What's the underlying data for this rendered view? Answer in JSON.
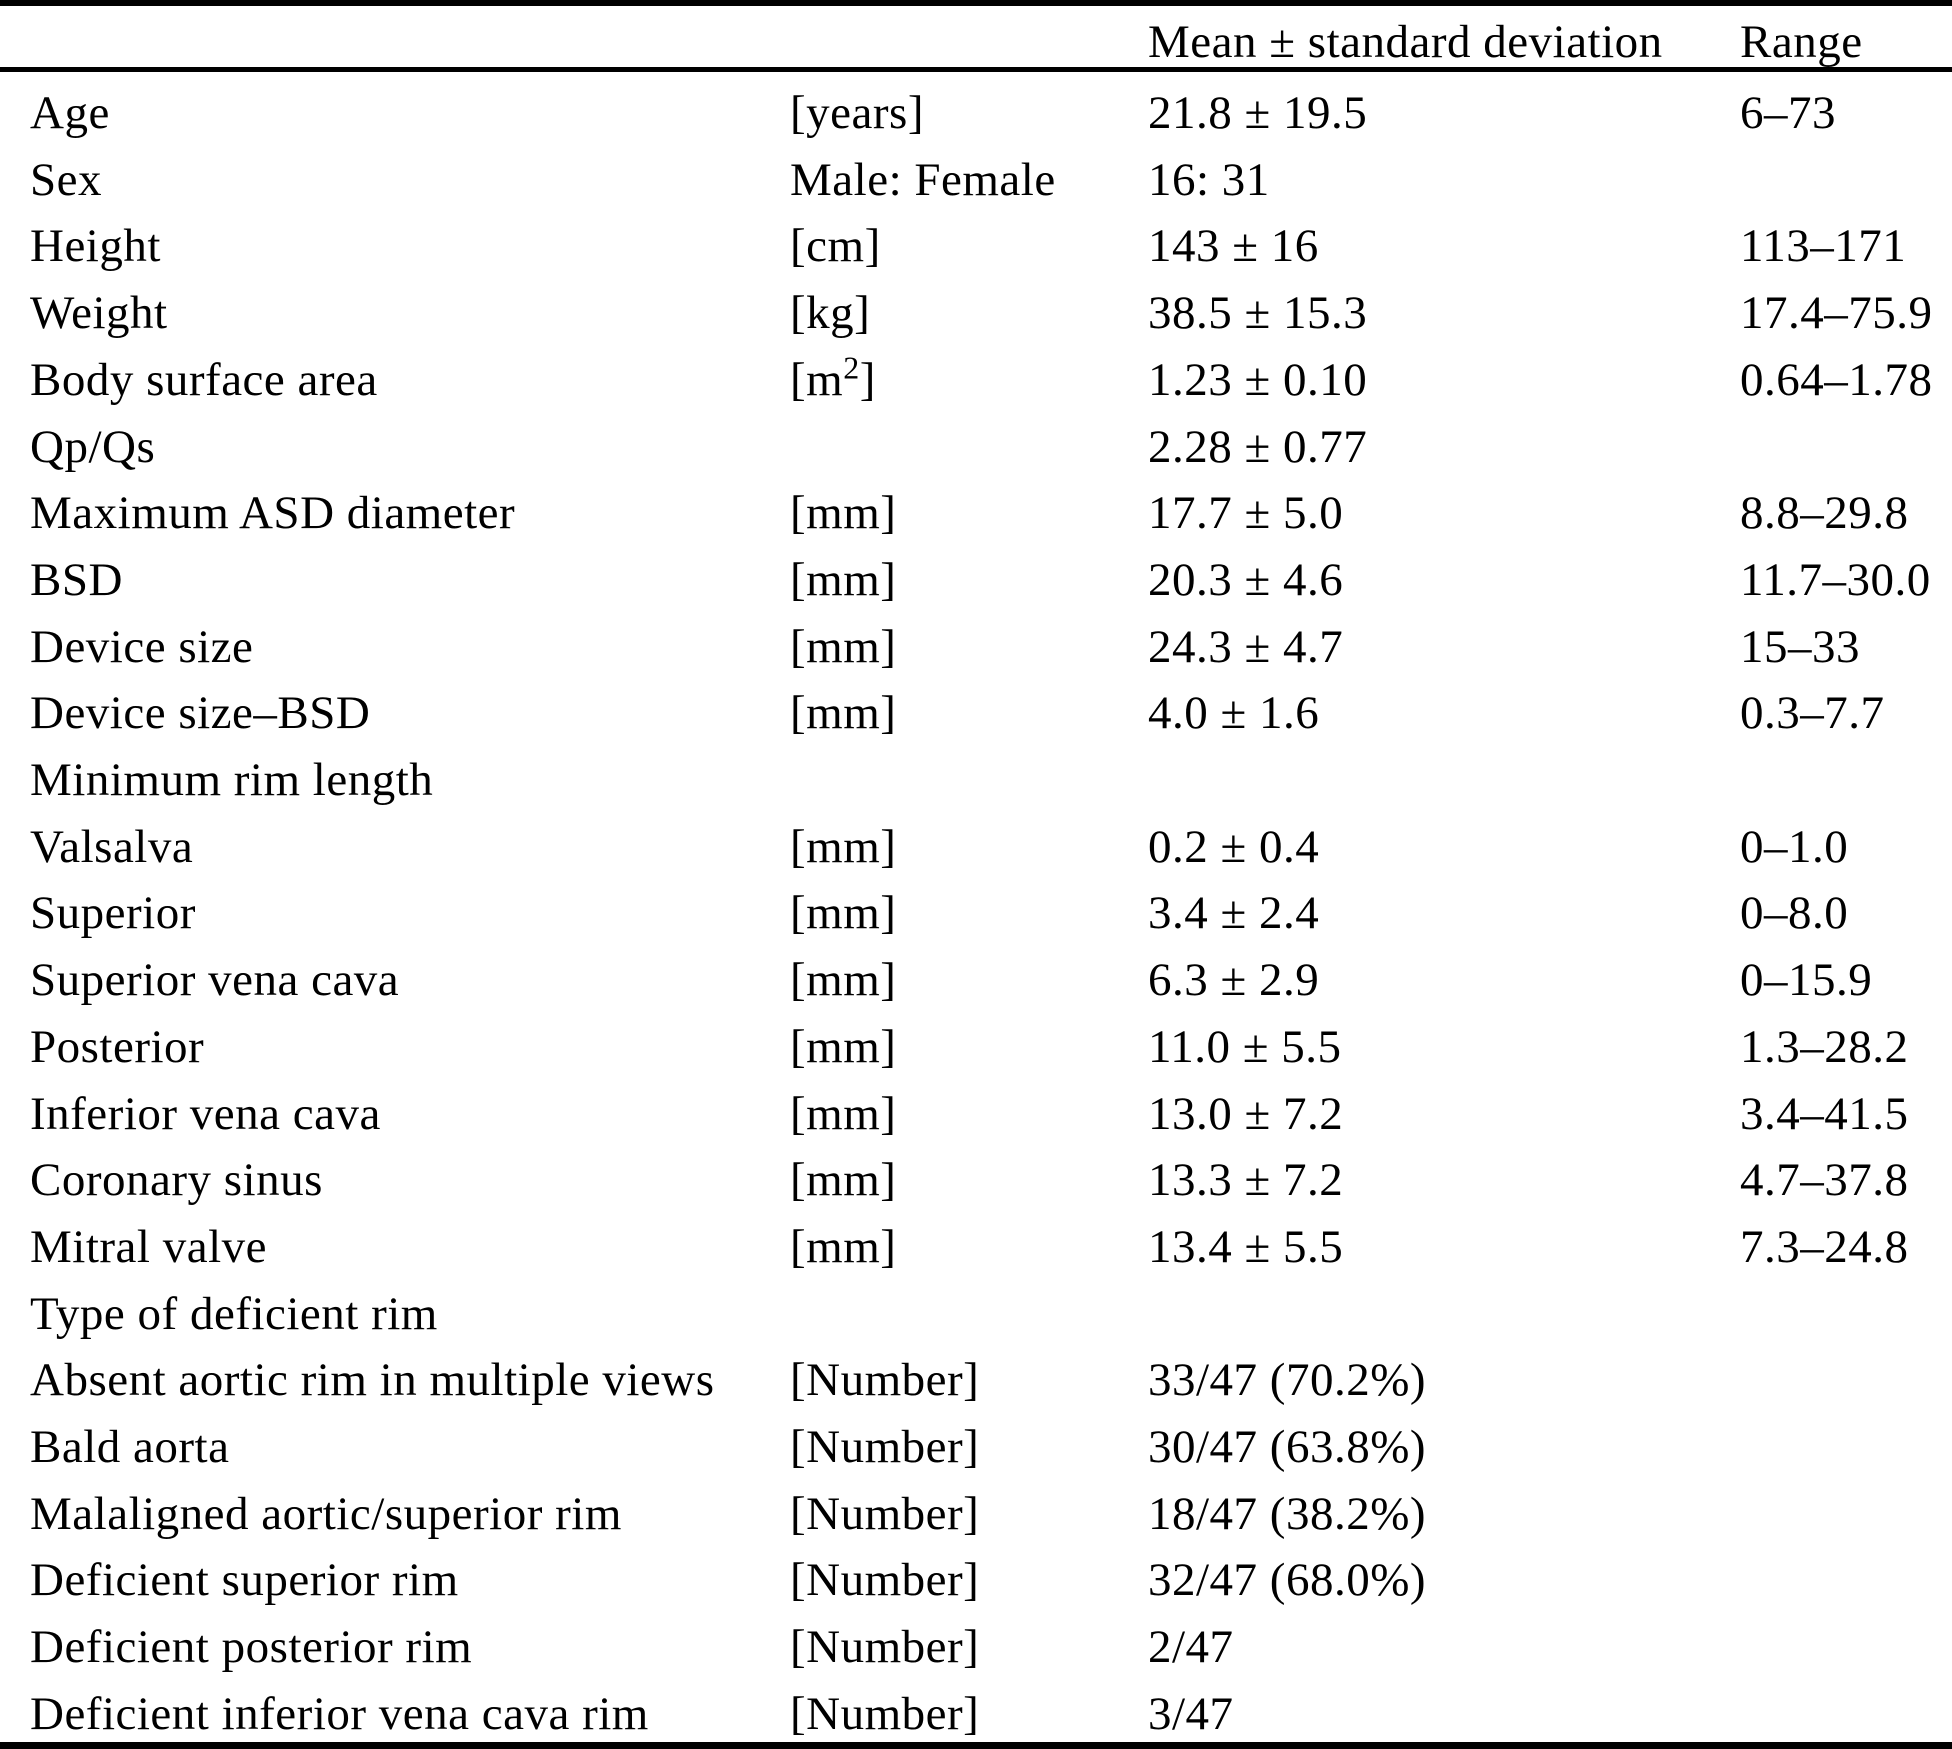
{
  "table": {
    "header": {
      "mean_label": "Mean ± standard deviation",
      "range_label": "Range"
    },
    "rows": [
      {
        "label": "Age",
        "unit": "[years]",
        "mean": "21.8 ± 19.5",
        "range": "6–73"
      },
      {
        "label": "Sex",
        "unit": "Male: Female",
        "mean": "16: 31",
        "range": ""
      },
      {
        "label": "Height",
        "unit": "[cm]",
        "mean": "143 ± 16",
        "range": "113–171"
      },
      {
        "label": "Weight",
        "unit": "[kg]",
        "mean": "38.5 ± 15.3",
        "range": "17.4–75.9"
      },
      {
        "label": "Body surface area",
        "unit": "[m²]",
        "mean": "1.23 ± 0.10",
        "range": "0.64–1.78"
      },
      {
        "label": "Qp/Qs",
        "unit": "",
        "mean": "2.28 ± 0.77",
        "range": ""
      },
      {
        "label": "Maximum ASD diameter",
        "unit": "[mm]",
        "mean": "17.7 ± 5.0",
        "range": "8.8–29.8"
      },
      {
        "label": "BSD",
        "unit": "[mm]",
        "mean": "20.3 ± 4.6",
        "range": "11.7–30.0"
      },
      {
        "label": "Device size",
        "unit": "[mm]",
        "mean": "24.3 ± 4.7",
        "range": "15–33"
      },
      {
        "label": "Device size–BSD",
        "unit": "[mm]",
        "mean": "4.0 ± 1.6",
        "range": "0.3–7.7"
      },
      {
        "label": "Minimum rim length",
        "unit": "",
        "mean": "",
        "range": ""
      },
      {
        "label": "Valsalva",
        "unit": "[mm]",
        "mean": "0.2 ± 0.4",
        "range": "0–1.0"
      },
      {
        "label": "Superior",
        "unit": "[mm]",
        "mean": "3.4 ± 2.4",
        "range": "0–8.0"
      },
      {
        "label": "Superior vena cava",
        "unit": "[mm]",
        "mean": "6.3 ± 2.9",
        "range": "0–15.9"
      },
      {
        "label": "Posterior",
        "unit": "[mm]",
        "mean": "11.0 ± 5.5",
        "range": "1.3–28.2"
      },
      {
        "label": "Inferior vena cava",
        "unit": "[mm]",
        "mean": "13.0 ± 7.2",
        "range": "3.4–41.5"
      },
      {
        "label": "Coronary sinus",
        "unit": "[mm]",
        "mean": "13.3 ± 7.2",
        "range": "4.7–37.8"
      },
      {
        "label": "Mitral valve",
        "unit": "[mm]",
        "mean": "13.4 ± 5.5",
        "range": "7.3–24.8"
      },
      {
        "label": "Type of deficient rim",
        "unit": "",
        "mean": "",
        "range": ""
      },
      {
        "label": "Absent aortic rim in multiple views",
        "unit": "[Number]",
        "mean": "33/47 (70.2%)",
        "range": ""
      },
      {
        "label": "Bald aorta",
        "unit": "[Number]",
        "mean": "30/47 (63.8%)",
        "range": ""
      },
      {
        "label": "Malaligned aortic/superior rim",
        "unit": "[Number]",
        "mean": "18/47 (38.2%)",
        "range": ""
      },
      {
        "label": "Deficient superior rim",
        "unit": "[Number]",
        "mean": "32/47 (68.0%)",
        "range": ""
      },
      {
        "label": "Deficient posterior rim",
        "unit": "[Number]",
        "mean": "2/47",
        "range": ""
      },
      {
        "label": "Deficient inferior vena cava rim",
        "unit": "[Number]",
        "mean": "3/47",
        "range": ""
      }
    ]
  }
}
